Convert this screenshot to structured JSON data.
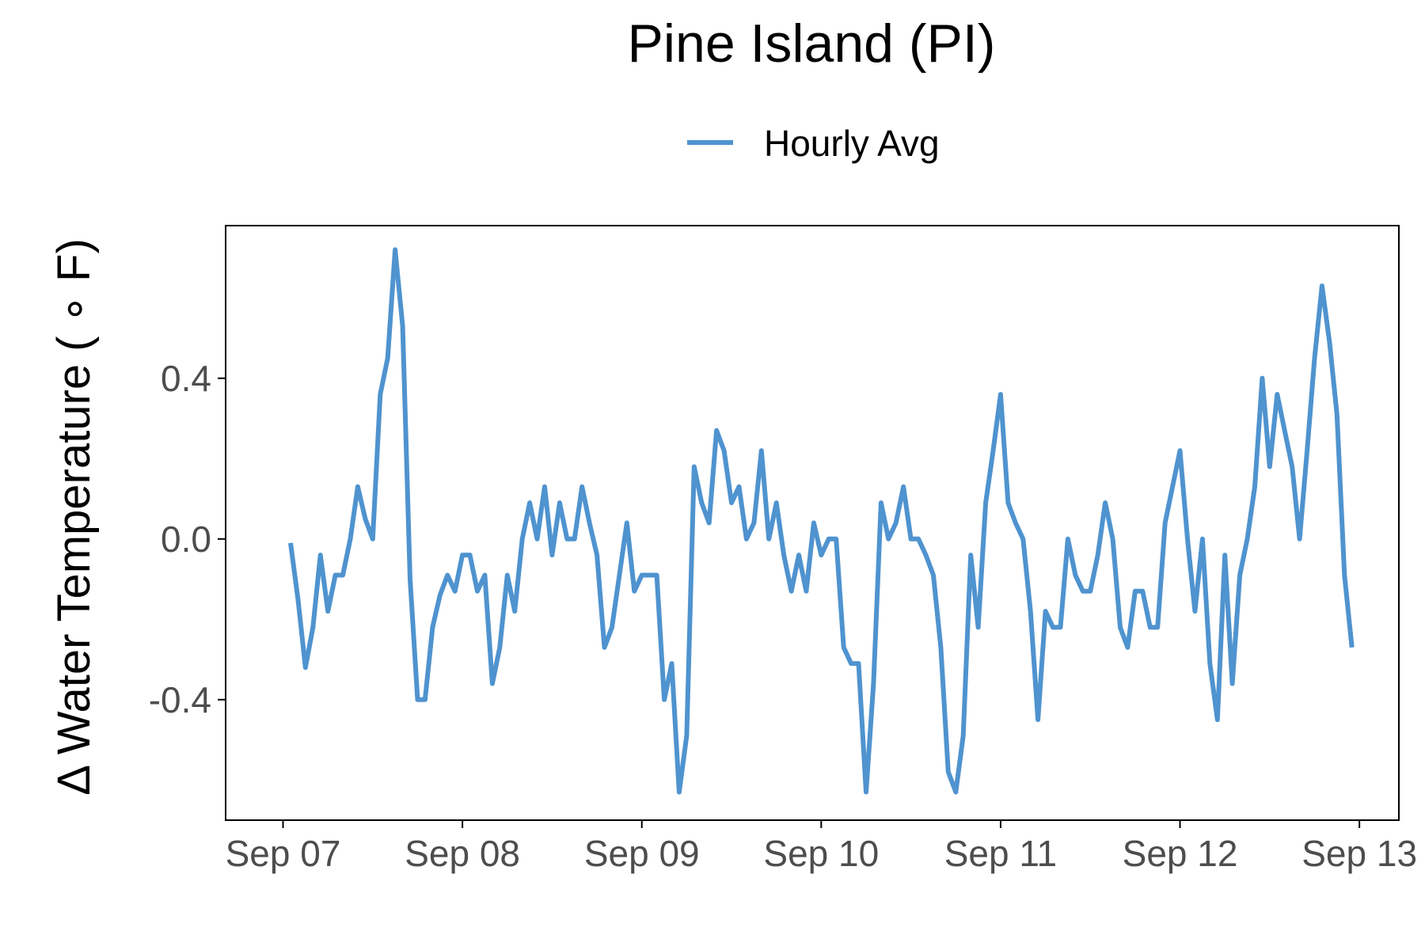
{
  "chart_data": {
    "type": "line",
    "title": "Pine Island (PI)",
    "xlabel": "",
    "ylabel": "Δ Water Temperature ( ∘ F)",
    "legend": {
      "position": "top",
      "entries": [
        "Hourly Avg"
      ]
    },
    "grid": false,
    "ylim": [
      -0.7,
      0.78
    ],
    "xlim_days": [
      -0.32,
      6.22
    ],
    "x_tick_labels": [
      "Sep 07",
      "Sep 08",
      "Sep 09",
      "Sep 10",
      "Sep 11",
      "Sep 12",
      "Sep 13"
    ],
    "y_ticks": [
      -0.4,
      0.0,
      0.4
    ],
    "y_tick_labels": [
      "-0.4",
      "0.0",
      "0.4"
    ],
    "colors": {
      "series": "#4f93cf",
      "axis": "#000000",
      "tick_label": "#4d4d4d"
    },
    "series": [
      {
        "name": "Hourly Avg",
        "x_hours": [
          1,
          2,
          3,
          4,
          5,
          6,
          7,
          8,
          9,
          10,
          11,
          12,
          13,
          14,
          15,
          16,
          17,
          18,
          19,
          20,
          21,
          22,
          23,
          24,
          25,
          26,
          27,
          28,
          29,
          30,
          31,
          32,
          33,
          34,
          35,
          36,
          37,
          38,
          39,
          40,
          41,
          42,
          43,
          44,
          45,
          46,
          47,
          48,
          49,
          50,
          51,
          52,
          53,
          54,
          55,
          56,
          57,
          58,
          59,
          60,
          61,
          62,
          63,
          64,
          65,
          66,
          67,
          68,
          69,
          70,
          71,
          72,
          73,
          74,
          75,
          76,
          77,
          78,
          79,
          80,
          81,
          82,
          83,
          84,
          85,
          86,
          87,
          88,
          89,
          90,
          91,
          92,
          93,
          94,
          95,
          96,
          97,
          98,
          99,
          100,
          101,
          102,
          103,
          104,
          105,
          106,
          107,
          108,
          109,
          110,
          111,
          112,
          113,
          114,
          115,
          116,
          117,
          118,
          119,
          120,
          121,
          122,
          123,
          124,
          125,
          126,
          127,
          128,
          129,
          130,
          131,
          132,
          133,
          134,
          135,
          136,
          137,
          138,
          139,
          140,
          141,
          142,
          143
        ],
        "values": [
          -0.01,
          -0.15,
          -0.32,
          -0.22,
          -0.04,
          -0.18,
          -0.09,
          -0.09,
          0.0,
          0.13,
          0.05,
          0.0,
          0.36,
          0.45,
          0.72,
          0.53,
          -0.1,
          -0.4,
          -0.4,
          -0.22,
          -0.14,
          -0.09,
          -0.13,
          -0.04,
          -0.04,
          -0.13,
          -0.09,
          -0.36,
          -0.27,
          -0.09,
          -0.18,
          0.0,
          0.09,
          0.0,
          0.13,
          -0.04,
          0.09,
          0.0,
          0.0,
          0.13,
          0.04,
          -0.04,
          -0.27,
          -0.22,
          -0.09,
          0.04,
          -0.13,
          -0.09,
          -0.09,
          -0.09,
          -0.4,
          -0.31,
          -0.63,
          -0.49,
          0.18,
          0.09,
          0.04,
          0.27,
          0.22,
          0.09,
          0.13,
          0.0,
          0.04,
          0.22,
          0.0,
          0.09,
          -0.04,
          -0.13,
          -0.04,
          -0.13,
          0.04,
          -0.04,
          0.0,
          0.0,
          -0.27,
          -0.31,
          -0.31,
          -0.63,
          -0.36,
          0.09,
          0.0,
          0.04,
          0.13,
          0.0,
          0.0,
          -0.04,
          -0.09,
          -0.27,
          -0.58,
          -0.63,
          -0.49,
          -0.04,
          -0.22,
          0.09,
          0.22,
          0.36,
          0.09,
          0.04,
          0.0,
          -0.18,
          -0.45,
          -0.18,
          -0.22,
          -0.22,
          0.0,
          -0.09,
          -0.13,
          -0.13,
          -0.04,
          0.09,
          0.0,
          -0.22,
          -0.27,
          -0.13,
          -0.13,
          -0.22,
          -0.22,
          0.04,
          0.13,
          0.22,
          0.0,
          -0.18,
          0.0,
          -0.31,
          -0.45,
          -0.04,
          -0.36,
          -0.09,
          0.0,
          0.13,
          0.4,
          0.18,
          0.36,
          0.27,
          0.18,
          0.0,
          0.22,
          0.45,
          0.63,
          0.49,
          0.31,
          -0.09,
          -0.27
        ]
      }
    ]
  }
}
